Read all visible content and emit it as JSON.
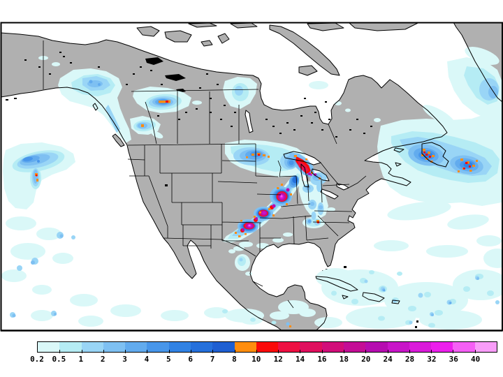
{
  "figure": {
    "type": "precipitation-forecast-map",
    "region": "North America",
    "background": "#ffffff"
  },
  "map": {
    "land_color": "#b0b0b0",
    "ocean_color": "#ffffff",
    "coastline_color": "#000000",
    "frame_color": "#000000"
  },
  "legend": {
    "tick_labels": [
      "0.2",
      "0.5",
      "1",
      "2",
      "3",
      "4",
      "5",
      "6",
      "7",
      "8",
      "10",
      "12",
      "14",
      "16",
      "18",
      "20",
      "24",
      "28",
      "32",
      "36",
      "40"
    ],
    "segment_colors": [
      "#daf8f8",
      "#b5ecf4",
      "#99d5f6",
      "#7ec0f2",
      "#62abee",
      "#4896ea",
      "#3182e4",
      "#2570dc",
      "#1e5fd2",
      "#ff8d0e",
      "#fa0a0a",
      "#ee1042",
      "#e00f5e",
      "#d20e7a",
      "#c40d96",
      "#b60cb0",
      "#c815c8",
      "#da1ada",
      "#ec1fec",
      "#f55ff5",
      "#f99df9"
    ]
  }
}
